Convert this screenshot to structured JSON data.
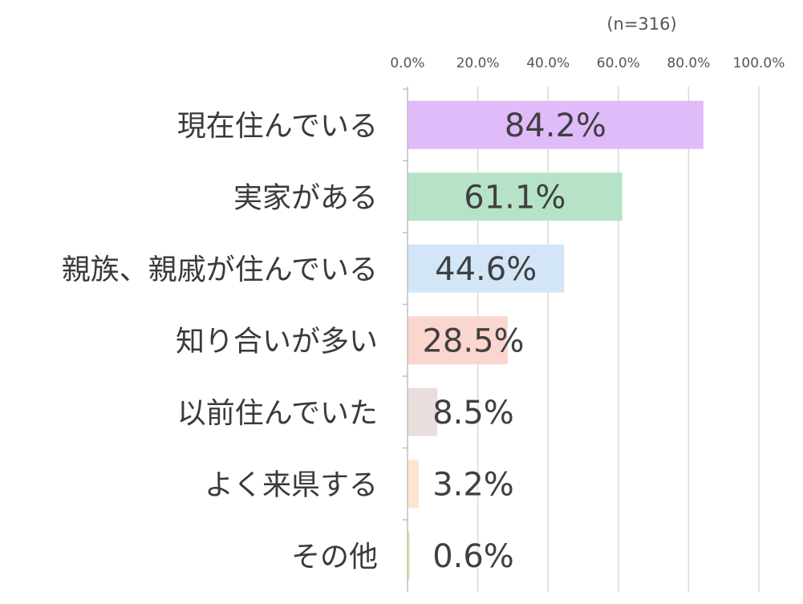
{
  "chart_data": {
    "type": "bar",
    "orientation": "horizontal",
    "note": "(n=316)",
    "categories": [
      "現在住んでいる",
      "実家がある",
      "親族、親戚が住んでいる",
      "知り合いが多い",
      "以前住んでいた",
      "よく来県する",
      "その他"
    ],
    "values": [
      84.2,
      61.1,
      44.6,
      28.5,
      8.5,
      3.2,
      0.6
    ],
    "data_labels": [
      "84.2%",
      "61.1%",
      "44.6%",
      "28.5%",
      "8.5%",
      "3.2%",
      "0.6%"
    ],
    "bar_colors": [
      "#E0BBFA",
      "#B6E3C8",
      "#D2E6F8",
      "#FBD6CF",
      "#E8DEDC",
      "#FDE5CE",
      "#D9EC97"
    ],
    "xlim": [
      0,
      100
    ],
    "x_ticks": [
      0,
      20,
      40,
      60,
      80,
      100
    ],
    "x_tick_labels": [
      "0.0%",
      "20.0%",
      "40.0%",
      "60.0%",
      "80.0%",
      "100.0%"
    ],
    "x_axis_position": "top",
    "grid": true,
    "legend": "none"
  }
}
